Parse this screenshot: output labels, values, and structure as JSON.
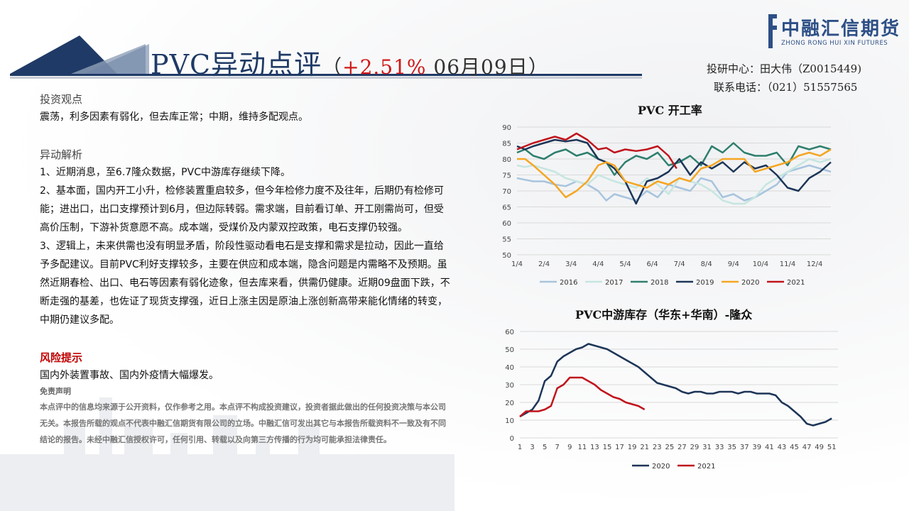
{
  "header": {
    "title_main": "PVC异动点评",
    "paren_open": "（",
    "pct": "+2.51%",
    "date": " 06月09日",
    "paren_close": "）"
  },
  "logo": {
    "name": "中融汇信期货",
    "sub": "ZHONG RONG HUI XIN FUTURES"
  },
  "contact": {
    "line1": "投研中心：田大伟（Z0015449)",
    "line2": "联系电话：（021）51557565"
  },
  "left": {
    "view_heading": "投资观点",
    "view_text": "震荡，利多因素有弱化，但去库正常；中期，维持多配观点。",
    "analysis_heading": "异动解析",
    "p1": "1、近期消息，至6.7隆众数据，PVC中游库存继续下降。",
    "p2": "2、基本面，国内开工小升，检修装置重启较多，但今年检修力度不及往年，后期仍有检修可能；进出口，出口支撑预计到6月，但边际转弱。需求端，目前看订单、开工刚需尚可，但受高价压制，下游补货意愿不高。成本端，受煤价及内蒙双控政策，电石支撑仍较强。",
    "p3": "3、逻辑上，未来供需也没有明显矛盾，阶段性驱动看电石是支撑和需求是拉动，因此一直给予多配建议。目前PVC利好支撑较多，主要在供应和成本端，隐含问题是内需略不及预期。虽然近期春检、出口、电石等因素有弱化迹象，但去库来看，供需仍健康。近期09盘面下跌，不断走强的基差，也佐证了现货支撑强，近日上涨主因是原油上涨创新高带来能化情绪的转变，中期仍建议多配。",
    "risk_heading": "风险提示",
    "risk_text": "国内外装置事故、国内外疫情大幅爆发。",
    "disclaimer_heading": "免责声明",
    "disclaimer_text": "本点评中的信息均来源于公开资料，仅作参考之用。本点评不构成投资建议，投资者据此做出的任何投资决策与本公司无关。本报告所载的观点不代表中融汇信期货有限公司的立场。中融汇信可发出其它与本报告所载资料不一致及有不同结论的报告。未经中融汇信授权许可，任何引用、转载以及向第三方传播的行为均可能承担法律责任。"
  },
  "chart_data": [
    {
      "type": "line",
      "title": "PVC 开工率",
      "xlabel": "",
      "ylabel": "",
      "ylim": [
        50,
        90
      ],
      "yticks": [
        50,
        55,
        60,
        65,
        70,
        75,
        80,
        85,
        90
      ],
      "x_tick_labels": [
        "1/4",
        "2/4",
        "3/4",
        "4/4",
        "5/4",
        "6/4",
        "7/4",
        "8/4",
        "9/4",
        "10/4",
        "11/4",
        "12/4"
      ],
      "x_range": [
        1,
        12.6
      ],
      "grid": "horizontal",
      "legend": "bottom",
      "series": [
        {
          "name": "2016",
          "color": "#a8c4de",
          "x": [
            1,
            1.3,
            1.6,
            2,
            2.4,
            2.8,
            3.2,
            3.6,
            4,
            4.3,
            4.6,
            5,
            5.4,
            5.8,
            6.2,
            6.6,
            7,
            7.4,
            7.8,
            8.2,
            8.6,
            9,
            9.4,
            9.8,
            10.2,
            10.6,
            11,
            11.4,
            11.8,
            12.2,
            12.6
          ],
          "y": [
            74,
            73.5,
            73,
            73,
            72,
            71.5,
            73,
            72,
            70,
            67,
            69,
            68,
            67,
            70,
            68,
            72,
            71,
            70,
            74,
            73,
            68,
            69,
            67,
            68,
            70,
            72,
            76,
            77,
            78,
            77,
            76
          ]
        },
        {
          "name": "2017",
          "color": "#c6e6e0",
          "x": [
            1,
            1.3,
            1.6,
            2,
            2.4,
            2.8,
            3.2,
            3.6,
            4,
            4.3,
            4.6,
            5,
            5.4,
            5.8,
            6.2,
            6.6,
            7,
            7.4,
            7.8,
            8.2,
            8.6,
            9,
            9.4,
            9.8,
            10.2,
            10.6,
            11,
            11.4,
            11.8,
            12.2,
            12.6
          ],
          "y": [
            78,
            77.5,
            78,
            77,
            76,
            74,
            73,
            72,
            75,
            74,
            73,
            72,
            71,
            74,
            72,
            69,
            74,
            73,
            72,
            70,
            67,
            66,
            66,
            68,
            72,
            74,
            76,
            78,
            80,
            79,
            80
          ]
        },
        {
          "name": "2018",
          "color": "#2e7f6e",
          "x": [
            1,
            1.3,
            1.6,
            2,
            2.4,
            2.8,
            3.2,
            3.6,
            4,
            4.3,
            4.6,
            5,
            5.4,
            5.8,
            6.2,
            6.6,
            7,
            7.4,
            7.8,
            8.2,
            8.6,
            9,
            9.4,
            9.8,
            10.2,
            10.6,
            11,
            11.4,
            11.8,
            12.2,
            12.6
          ],
          "y": [
            82,
            83,
            81,
            80,
            82,
            83,
            81,
            82,
            80,
            79,
            75,
            79,
            81,
            80,
            82,
            78,
            79,
            81,
            78,
            84,
            82,
            85,
            82,
            81,
            81,
            82,
            78,
            84,
            83,
            84,
            83
          ]
        },
        {
          "name": "2019",
          "color": "#1d3557",
          "x": [
            1,
            1.3,
            1.6,
            2,
            2.4,
            2.8,
            3.2,
            3.6,
            4,
            4.3,
            4.6,
            5,
            5.4,
            5.8,
            6.2,
            6.6,
            7,
            7.4,
            7.8,
            8.2,
            8.6,
            9,
            9.4,
            9.8,
            10.2,
            10.6,
            11,
            11.4,
            11.8,
            12.2,
            12.6
          ],
          "y": [
            84,
            83,
            84,
            85,
            86,
            85.5,
            86,
            85,
            80,
            79,
            77,
            73,
            66,
            73,
            74,
            76,
            80,
            75,
            79,
            77,
            79,
            76,
            79,
            77,
            78,
            75,
            71,
            70,
            74,
            76,
            79
          ]
        },
        {
          "name": "2020",
          "color": "#f5a623",
          "x": [
            1,
            1.3,
            1.6,
            2,
            2.4,
            2.8,
            3.2,
            3.6,
            4,
            4.3,
            4.6,
            5,
            5.4,
            5.8,
            6.2,
            6.6,
            7,
            7.4,
            7.8,
            8.2,
            8.6,
            9,
            9.4,
            9.8,
            10.2,
            10.6,
            11,
            11.4,
            11.8,
            12.2,
            12.6
          ],
          "y": [
            80,
            80,
            78,
            75,
            72,
            68,
            70,
            73,
            78,
            79,
            78,
            73,
            72,
            71,
            73,
            72,
            74,
            73,
            77,
            78,
            80,
            80,
            80,
            76,
            77,
            78,
            79,
            81,
            82,
            81,
            83
          ]
        },
        {
          "name": "2021",
          "color": "#c0141c",
          "x": [
            1,
            1.3,
            1.6,
            2,
            2.4,
            2.8,
            3.2,
            3.6,
            4,
            4.3,
            4.6,
            5,
            5.4,
            5.8,
            6.2,
            6.6,
            6.9
          ],
          "y": [
            83,
            84,
            85,
            86,
            87,
            86,
            88,
            86,
            83,
            83.5,
            82,
            83,
            82.5,
            83,
            84,
            81,
            77
          ]
        }
      ]
    },
    {
      "type": "line",
      "title": "PVC中游库存（华东+华南）-隆众",
      "xlabel": "",
      "ylabel": "",
      "ylim": [
        0,
        60
      ],
      "yticks": [
        0,
        10,
        20,
        30,
        40,
        50,
        60
      ],
      "x_tick_labels": [
        "1",
        "3",
        "5",
        "7",
        "9",
        "11",
        "13",
        "15",
        "17",
        "19",
        "21",
        "23",
        "25",
        "27",
        "29",
        "31",
        "33",
        "35",
        "37",
        "39",
        "41",
        "43",
        "45",
        "47",
        "49",
        "51"
      ],
      "x_range": [
        1,
        52
      ],
      "grid": "horizontal",
      "legend": "bottom",
      "series": [
        {
          "name": "2020",
          "color": "#1d3557",
          "x": [
            1,
            2,
            3,
            4,
            5,
            6,
            7,
            8,
            9,
            10,
            11,
            12,
            13,
            14,
            15,
            16,
            17,
            18,
            19,
            20,
            21,
            22,
            23,
            24,
            25,
            26,
            27,
            28,
            29,
            30,
            31,
            32,
            33,
            34,
            35,
            36,
            37,
            38,
            39,
            40,
            41,
            42,
            43,
            44,
            45,
            46,
            47,
            48,
            49,
            50,
            51
          ],
          "y": [
            12,
            14,
            16,
            21,
            32,
            35,
            43,
            46,
            48,
            50,
            51,
            53,
            52,
            51,
            50,
            48,
            46,
            44,
            42,
            40,
            37,
            34,
            31,
            30,
            29,
            28,
            26,
            25,
            26,
            26,
            25,
            25,
            26,
            26,
            26,
            25,
            26,
            26,
            25,
            25,
            25,
            24,
            20,
            18,
            15,
            12,
            8,
            7,
            8,
            9,
            11
          ]
        },
        {
          "name": "2021",
          "color": "#c0141c",
          "x": [
            1,
            2,
            3,
            4,
            5,
            6,
            7,
            8,
            9,
            10,
            11,
            12,
            13,
            14,
            15,
            16,
            17,
            18,
            19,
            20,
            21
          ],
          "y": [
            12,
            15,
            15,
            15,
            16,
            18,
            28,
            30,
            34,
            34,
            34,
            32,
            30,
            27,
            25,
            23,
            22,
            20,
            19,
            18,
            16
          ]
        }
      ]
    }
  ]
}
